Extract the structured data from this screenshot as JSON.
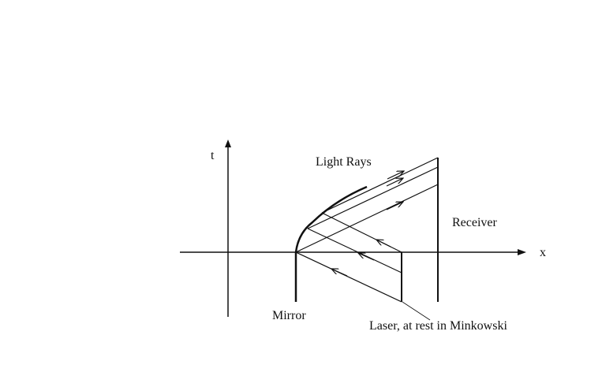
{
  "labels": {
    "t_axis": "t",
    "x_axis": "x",
    "light_rays": "Light Rays",
    "receiver": "Receiver",
    "mirror": "Mirror",
    "laser": "Laser, at rest in Minkowski"
  }
}
